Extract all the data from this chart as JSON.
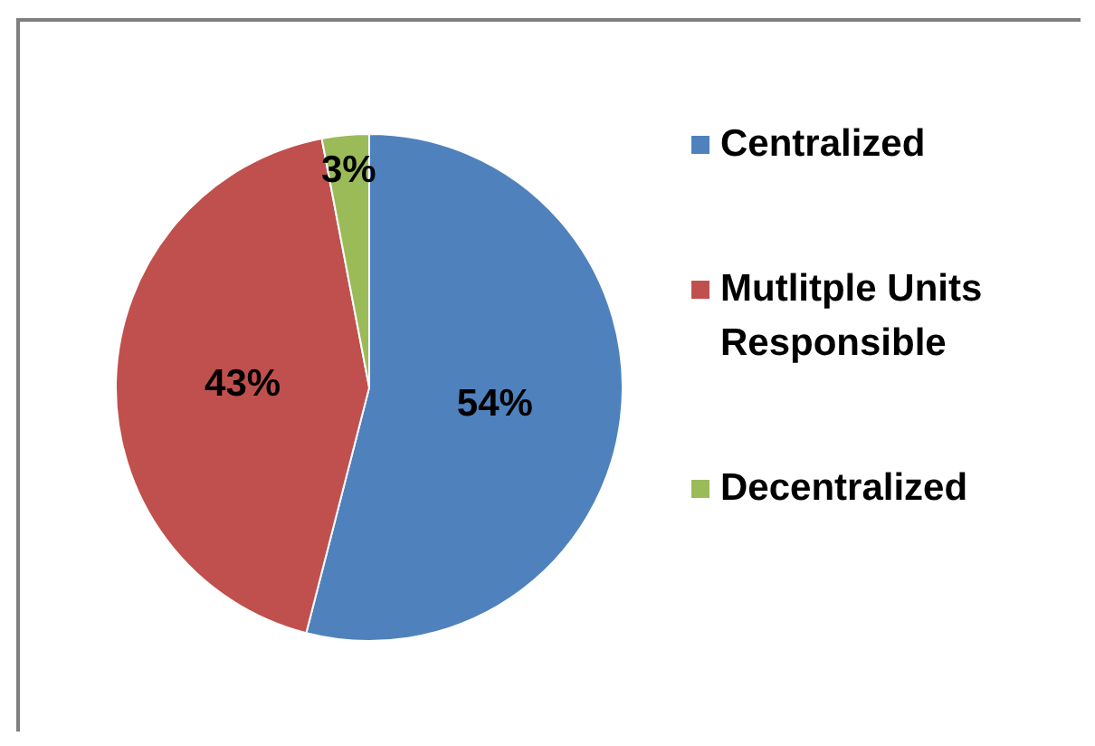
{
  "chart_data": {
    "type": "pie",
    "categories": [
      "Centralized",
      "Mutlitple Units Responsible",
      "Decentralized"
    ],
    "values": [
      54,
      43,
      3
    ],
    "colors": [
      "#4f81bd",
      "#c0504d",
      "#9bbb59"
    ],
    "value_labels": [
      "54%",
      "43%",
      "3%"
    ],
    "legend": "right"
  }
}
